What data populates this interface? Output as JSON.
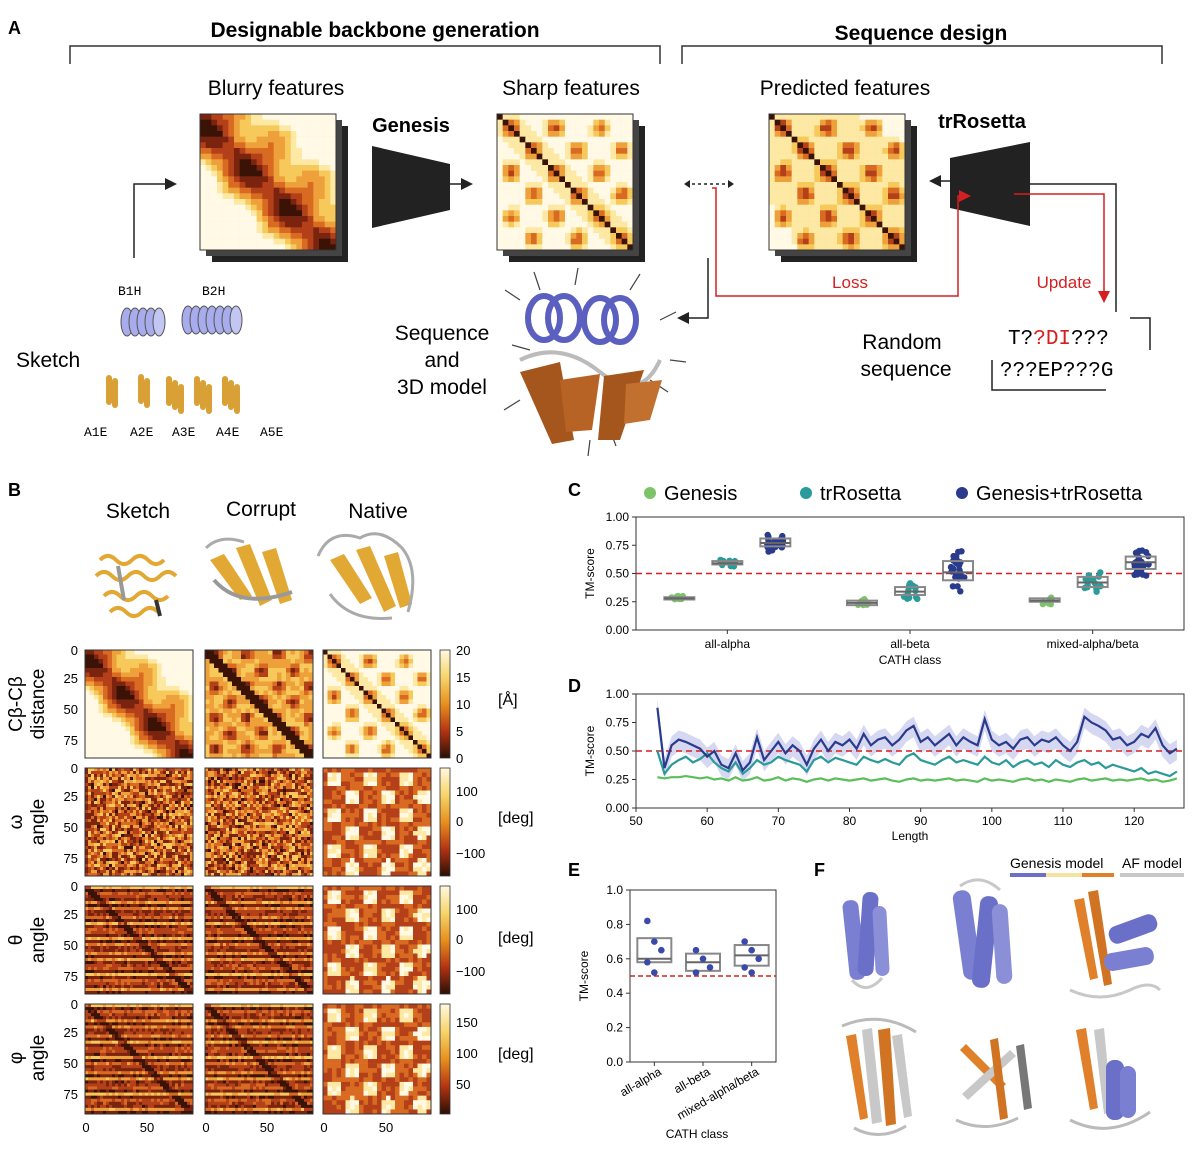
{
  "panel_a": {
    "label": "A",
    "header_left": "Designable backbone generation",
    "header_right": "Sequence design",
    "blurry_title": "Blurry features",
    "genesis_label": "Genesis",
    "sharp_title": "Sharp features",
    "predicted_title": "Predicted features",
    "trrosetta_label": "trRosetta",
    "sketch_label": "Sketch",
    "helix_labels": [
      "B1H",
      "B2H"
    ],
    "strand_labels": [
      "A1E",
      "A2E",
      "A3E",
      "A4E",
      "A5E"
    ],
    "seq3d_lines": [
      "Sequence",
      "and",
      "3D model"
    ],
    "loss_label": "Loss",
    "update_label": "Update",
    "random_lines": [
      "Random",
      "sequence"
    ],
    "seq_line1_a": "T?",
    "seq_line1_red": "?DI",
    "seq_line1_b": "???",
    "seq_line2": "???EP???G",
    "colors": {
      "red": "#d42020",
      "dark": "#222222",
      "helix": "#8a8fd8",
      "strand": "#d9a036"
    }
  },
  "panel_b": {
    "label": "B",
    "columns": [
      "Sketch",
      "Corrupt",
      "Native"
    ],
    "rows": [
      {
        "label_lines": [
          "Cβ-Cβ",
          "distance"
        ],
        "unit": "[Å]",
        "ticks": [
          "0",
          "25",
          "50",
          "75"
        ],
        "cbar_ticks": [
          "20",
          "15",
          "10",
          "5",
          "0"
        ]
      },
      {
        "label_lines": [
          "ω",
          "angle"
        ],
        "unit": "[deg]",
        "ticks": [
          "0",
          "25",
          "50",
          "75"
        ],
        "cbar_ticks": [
          "100",
          "0",
          "−100"
        ]
      },
      {
        "label_lines": [
          "θ",
          "angle"
        ],
        "unit": "[deg]",
        "ticks": [
          "0",
          "25",
          "50",
          "75"
        ],
        "cbar_ticks": [
          "100",
          "0",
          "−100"
        ]
      },
      {
        "label_lines": [
          "φ",
          "angle"
        ],
        "unit": "[deg]",
        "ticks": [
          "0",
          "25",
          "50",
          "75"
        ],
        "cbar_ticks": [
          "150",
          "100",
          "50"
        ]
      }
    ],
    "x_ticks": [
      "0",
      "50"
    ]
  },
  "panel_c": {
    "label": "C"
  },
  "panel_d": {
    "label": "D"
  },
  "panel_e": {
    "label": "E"
  },
  "panel_f": {
    "label": "F",
    "legend_genesis": "Genesis model",
    "legend_af": "AF model",
    "colors": {
      "helix": "#6a6fc8",
      "strand": "#e0802a",
      "af": "#c8c8c8"
    }
  },
  "chart_data": [
    {
      "id": "C",
      "type": "scatter",
      "categories": [
        "all-alpha",
        "all-beta",
        "mixed-alpha/beta"
      ],
      "series": [
        {
          "name": "Genesis",
          "color": "#7cc36a",
          "medians": [
            0.28,
            0.24,
            0.26
          ],
          "q1": [
            0.27,
            0.22,
            0.25
          ],
          "q3": [
            0.29,
            0.26,
            0.28
          ]
        },
        {
          "name": "trRosetta",
          "color": "#2a9a9a",
          "medians": [
            0.59,
            0.34,
            0.42
          ],
          "q1": [
            0.58,
            0.31,
            0.38
          ],
          "q3": [
            0.61,
            0.38,
            0.47
          ]
        },
        {
          "name": "Genesis+trRosetta",
          "color": "#2a3a8c",
          "medians": [
            0.77,
            0.51,
            0.6
          ],
          "q1": [
            0.74,
            0.44,
            0.54
          ],
          "q3": [
            0.81,
            0.61,
            0.65
          ]
        }
      ],
      "xlabel": "CATH class",
      "ylabel": "TM-score",
      "yticks": [
        "0.00",
        "0.25",
        "0.50",
        "0.75",
        "1.00"
      ],
      "ylim": [
        0,
        1
      ],
      "threshold": 0.5,
      "legend": "top"
    },
    {
      "id": "D",
      "type": "line",
      "x": [
        53,
        54,
        55,
        56,
        57,
        58,
        59,
        60,
        61,
        62,
        63,
        64,
        65,
        66,
        67,
        68,
        69,
        70,
        71,
        72,
        73,
        74,
        75,
        76,
        77,
        78,
        79,
        80,
        81,
        82,
        83,
        84,
        85,
        86,
        87,
        88,
        89,
        90,
        91,
        92,
        93,
        94,
        95,
        96,
        97,
        98,
        99,
        100,
        101,
        102,
        103,
        104,
        105,
        106,
        107,
        108,
        109,
        110,
        111,
        112,
        113,
        114,
        115,
        116,
        117,
        118,
        119,
        120,
        121,
        122,
        123,
        124,
        125,
        126
      ],
      "series": [
        {
          "name": "",
          "color": "#2a3a8c",
          "values": [
            0.88,
            0.35,
            0.55,
            0.6,
            0.58,
            0.55,
            0.52,
            0.45,
            0.5,
            0.38,
            0.35,
            0.48,
            0.33,
            0.4,
            0.62,
            0.42,
            0.5,
            0.58,
            0.48,
            0.55,
            0.5,
            0.38,
            0.52,
            0.6,
            0.5,
            0.58,
            0.55,
            0.6,
            0.52,
            0.65,
            0.55,
            0.6,
            0.62,
            0.55,
            0.6,
            0.68,
            0.72,
            0.58,
            0.62,
            0.55,
            0.6,
            0.65,
            0.55,
            0.62,
            0.58,
            0.55,
            0.78,
            0.6,
            0.55,
            0.58,
            0.52,
            0.6,
            0.62,
            0.55,
            0.6,
            0.58,
            0.62,
            0.55,
            0.5,
            0.58,
            0.8,
            0.75,
            0.72,
            0.68,
            0.6,
            0.62,
            0.55,
            0.58,
            0.65,
            0.62,
            0.7,
            0.55,
            0.48,
            0.52
          ]
        },
        {
          "name": "",
          "color": "#2a9a9a",
          "values": [
            0.5,
            0.3,
            0.38,
            0.42,
            0.45,
            0.4,
            0.43,
            0.48,
            0.4,
            0.35,
            0.32,
            0.4,
            0.3,
            0.35,
            0.42,
            0.38,
            0.4,
            0.45,
            0.42,
            0.4,
            0.38,
            0.32,
            0.42,
            0.45,
            0.4,
            0.44,
            0.42,
            0.4,
            0.38,
            0.45,
            0.42,
            0.4,
            0.43,
            0.4,
            0.38,
            0.45,
            0.48,
            0.42,
            0.4,
            0.38,
            0.42,
            0.45,
            0.4,
            0.42,
            0.4,
            0.38,
            0.45,
            0.4,
            0.38,
            0.42,
            0.36,
            0.4,
            0.42,
            0.38,
            0.4,
            0.36,
            0.42,
            0.38,
            0.36,
            0.4,
            0.42,
            0.38,
            0.4,
            0.35,
            0.38,
            0.36,
            0.34,
            0.32,
            0.35,
            0.3,
            0.32,
            0.3,
            0.28,
            0.32
          ]
        },
        {
          "name": "",
          "color": "#5abf5a",
          "values": [
            0.27,
            0.26,
            0.27,
            0.27,
            0.28,
            0.27,
            0.26,
            0.27,
            0.25,
            0.26,
            0.24,
            0.27,
            0.24,
            0.25,
            0.27,
            0.24,
            0.25,
            0.27,
            0.24,
            0.26,
            0.25,
            0.23,
            0.25,
            0.26,
            0.24,
            0.26,
            0.25,
            0.24,
            0.25,
            0.26,
            0.24,
            0.25,
            0.26,
            0.24,
            0.23,
            0.25,
            0.26,
            0.24,
            0.25,
            0.24,
            0.25,
            0.26,
            0.24,
            0.25,
            0.24,
            0.23,
            0.26,
            0.24,
            0.25,
            0.24,
            0.23,
            0.25,
            0.26,
            0.24,
            0.25,
            0.23,
            0.25,
            0.24,
            0.23,
            0.25,
            0.26,
            0.24,
            0.25,
            0.26,
            0.24,
            0.25,
            0.24,
            0.25,
            0.26,
            0.24,
            0.25,
            0.23,
            0.24,
            0.26
          ]
        }
      ],
      "xlabel": "Length",
      "ylabel": "TM-score",
      "xticks": [
        "50",
        "60",
        "70",
        "80",
        "90",
        "100",
        "110",
        "120"
      ],
      "xlim": [
        50,
        127
      ],
      "yticks": [
        "0.00",
        "0.25",
        "0.50",
        "0.75",
        "1.00"
      ],
      "ylim": [
        0,
        1
      ],
      "threshold": 0.5
    },
    {
      "id": "E",
      "type": "scatter",
      "categories": [
        "all-alpha",
        "all-beta",
        "mixed-alpha/beta"
      ],
      "medians": [
        0.6,
        0.58,
        0.62
      ],
      "q1": [
        0.58,
        0.53,
        0.56
      ],
      "q3": [
        0.72,
        0.63,
        0.68
      ],
      "points": [
        [
          0.82,
          0.7,
          0.65,
          0.58,
          0.52
        ],
        [
          0.65,
          0.6,
          0.55,
          0.52
        ],
        [
          0.7,
          0.65,
          0.6,
          0.55,
          0.52
        ]
      ],
      "color": "#3a4aa8",
      "xlabel": "CATH class",
      "ylabel": "TM-score",
      "yticks": [
        "0.0",
        "0.2",
        "0.4",
        "0.6",
        "0.8",
        "1.0"
      ],
      "ylim": [
        0,
        1
      ],
      "threshold": 0.5
    }
  ]
}
